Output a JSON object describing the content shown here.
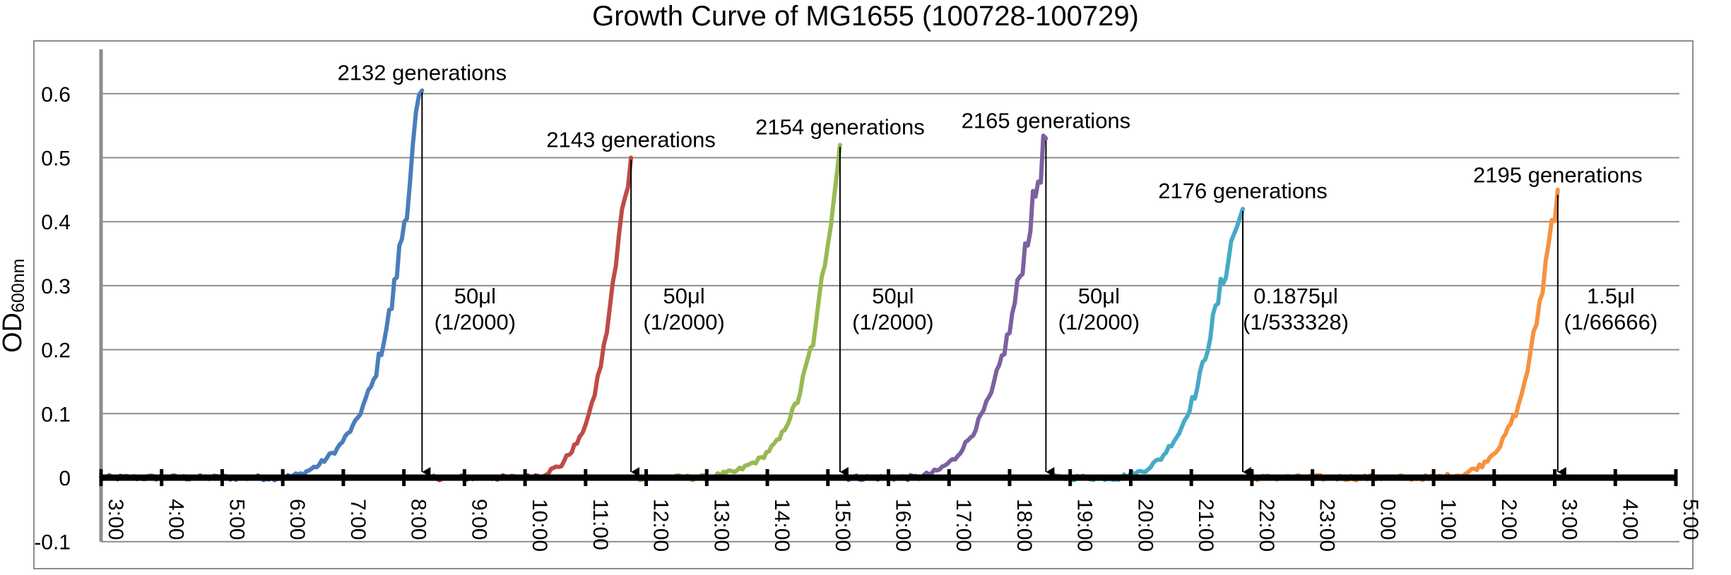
{
  "chart_data": {
    "type": "line",
    "title": "Growth Curve of MG1655 (100728-100729)",
    "ylabel": "OD",
    "ylabel_subscript": "600nm",
    "ylim": [
      -0.1,
      0.65
    ],
    "yticks": [
      -0.1,
      0,
      0.1,
      0.2,
      0.3,
      0.4,
      0.5,
      0.6
    ],
    "ytick_labels": [
      "-0.1",
      "0",
      "0.1",
      "0.2",
      "0.3",
      "0.4",
      "0.5",
      "0.6"
    ],
    "xlim_hours_elapsed_from_3_00": [
      0,
      26
    ],
    "xtick_labels": [
      "3:00",
      "4:00",
      "5:00",
      "6:00",
      "7:00",
      "8:00",
      "9:00",
      "10:00",
      "11:00",
      "12:00",
      "13:00",
      "14:00",
      "15:00",
      "16:00",
      "17:00",
      "18:00",
      "19:00",
      "20:00",
      "21:00",
      "22:00",
      "23:00",
      "0:00",
      "1:00",
      "2:00",
      "3:00",
      "4:00",
      "5:00"
    ],
    "grid": "horizontal",
    "series": [
      {
        "color": "#4a7ebb",
        "points": [
          [
            3.0,
            0
          ],
          [
            3.5,
            0
          ],
          [
            4.0,
            0
          ],
          [
            4.5,
            0
          ],
          [
            5.0,
            0
          ],
          [
            5.5,
            0
          ],
          [
            6.0,
            0
          ],
          [
            6.3,
            0.005
          ],
          [
            6.6,
            0.02
          ],
          [
            6.9,
            0.045
          ],
          [
            7.2,
            0.085
          ],
          [
            7.5,
            0.15
          ],
          [
            7.8,
            0.27
          ],
          [
            8.05,
            0.43
          ],
          [
            8.2,
            0.55
          ],
          [
            8.3,
            0.605
          ]
        ]
      },
      {
        "color": "#be4b48",
        "points": [
          [
            8.4,
            0
          ],
          [
            9.0,
            0
          ],
          [
            9.5,
            0
          ],
          [
            10.0,
            0
          ],
          [
            10.3,
            0.005
          ],
          [
            10.6,
            0.02
          ],
          [
            10.9,
            0.06
          ],
          [
            11.1,
            0.11
          ],
          [
            11.3,
            0.2
          ],
          [
            11.5,
            0.33
          ],
          [
            11.65,
            0.45
          ],
          [
            11.75,
            0.5
          ]
        ]
      },
      {
        "color": "#98b954",
        "points": [
          [
            11.85,
            0
          ],
          [
            12.5,
            0
          ],
          [
            13.0,
            0
          ],
          [
            13.5,
            0.01
          ],
          [
            13.9,
            0.03
          ],
          [
            14.2,
            0.06
          ],
          [
            14.5,
            0.12
          ],
          [
            14.8,
            0.23
          ],
          [
            15.0,
            0.38
          ],
          [
            15.2,
            0.52
          ]
        ]
      },
      {
        "color": "#7d60a0",
        "points": [
          [
            15.25,
            0
          ],
          [
            16.0,
            0
          ],
          [
            16.5,
            0
          ],
          [
            16.8,
            0.01
          ],
          [
            17.1,
            0.03
          ],
          [
            17.4,
            0.07
          ],
          [
            17.7,
            0.13
          ],
          [
            18.0,
            0.23
          ],
          [
            18.3,
            0.38
          ],
          [
            18.6,
            0.53
          ]
        ]
      },
      {
        "color": "#46aac5",
        "points": [
          [
            18.65,
            0
          ],
          [
            19.3,
            0
          ],
          [
            19.8,
            0
          ],
          [
            20.2,
            0.01
          ],
          [
            20.5,
            0.03
          ],
          [
            20.8,
            0.07
          ],
          [
            21.1,
            0.14
          ],
          [
            21.4,
            0.26
          ],
          [
            21.7,
            0.38
          ],
          [
            21.85,
            0.42
          ]
        ]
      },
      {
        "color": "#f69240",
        "points": [
          [
            22.0,
            0
          ],
          [
            23.0,
            0
          ],
          [
            24.0,
            0
          ],
          [
            25.0,
            0
          ],
          [
            25.5,
            0.005
          ],
          [
            25.8,
            0.02
          ],
          [
            26.1,
            0.05
          ],
          [
            26.4,
            0.11
          ],
          [
            26.6,
            0.19
          ],
          [
            26.8,
            0.3
          ],
          [
            26.95,
            0.4
          ],
          [
            27.05,
            0.45
          ]
        ]
      }
    ],
    "annotations": {
      "generations": [
        {
          "text": "2132 generations",
          "x": 8.3,
          "y": 0.605
        },
        {
          "text": "2143 generations",
          "x": 11.75,
          "y": 0.5
        },
        {
          "text": "2154 generations",
          "x": 15.2,
          "y": 0.52
        },
        {
          "text": "2165 generations",
          "x": 18.6,
          "y": 0.53
        },
        {
          "text": "2176 generations",
          "x": 21.85,
          "y": 0.42
        },
        {
          "text": "2195 generations",
          "x": 27.05,
          "y": 0.445
        }
      ],
      "dilutions": [
        {
          "line1": "50μl",
          "line2": "(1/2000)",
          "x": 8.3
        },
        {
          "line1": "50μl",
          "line2": "(1/2000)",
          "x": 11.75
        },
        {
          "line1": "50μl",
          "line2": "(1/2000)",
          "x": 15.2
        },
        {
          "line1": "50μl",
          "line2": "(1/2000)",
          "x": 18.6
        },
        {
          "line1": "0.1875μl",
          "line2": "(1/533328)",
          "x": 21.85
        },
        {
          "line1": "1.5μl",
          "line2": "(1/66666)",
          "x": 27.05
        }
      ]
    }
  }
}
